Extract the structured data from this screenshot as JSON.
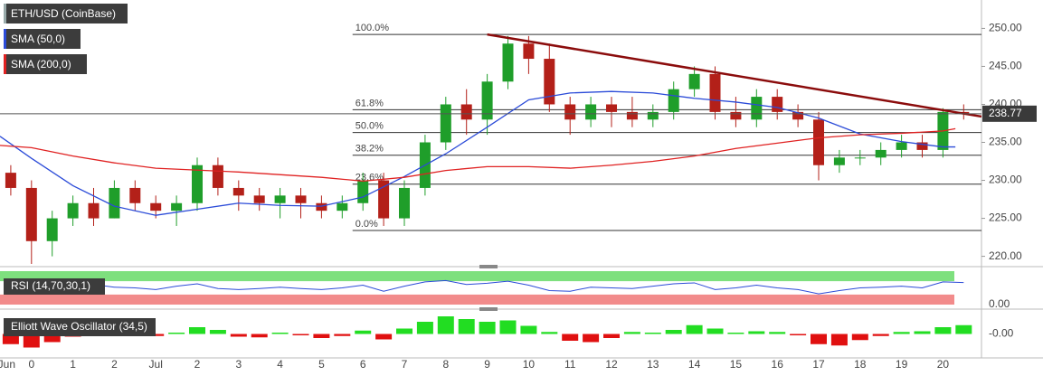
{
  "chart_data": [
    {
      "type": "candlestick",
      "title": "ETH/USD (CoinBase)",
      "x": [
        -0.5,
        0,
        0.5,
        1,
        1.5,
        2,
        2.5,
        3,
        3.5,
        4,
        4.5,
        5,
        5.5,
        6,
        6.5,
        7,
        7.5,
        8,
        8.5,
        9,
        9.5,
        10,
        10.5,
        11,
        11.5,
        12,
        12.5,
        13,
        13.5,
        14,
        14.5,
        15,
        15.5,
        16,
        16.5,
        17,
        17.5,
        18,
        18.5,
        19,
        19.5,
        20,
        20.5,
        21,
        21.5,
        22,
        22.5
      ],
      "open": [
        231,
        229,
        222,
        225,
        227,
        225,
        229,
        227,
        226,
        227,
        232,
        229,
        228,
        227,
        228,
        227,
        226,
        227,
        230,
        225,
        229,
        235,
        240,
        238,
        243,
        248,
        246,
        240,
        238,
        240,
        239,
        238,
        239,
        242,
        244,
        239,
        238,
        241,
        239,
        238,
        232,
        233,
        233,
        234,
        235,
        234,
        239
      ],
      "high": [
        232,
        230,
        226,
        228,
        229,
        230,
        230,
        228,
        228,
        233,
        233,
        230,
        229,
        229,
        229,
        228,
        228,
        231,
        231,
        230,
        236,
        241,
        242,
        244,
        249,
        249,
        248,
        241,
        241,
        241,
        241,
        240,
        243,
        245,
        245,
        241,
        242,
        242,
        240,
        239,
        234,
        234,
        235,
        236,
        236,
        239.5,
        240
      ],
      "low": [
        228,
        219,
        220,
        224,
        224,
        225,
        226,
        225,
        224,
        226,
        228,
        226,
        226,
        225,
        225,
        225,
        225,
        226,
        224,
        224,
        228,
        234,
        236,
        236,
        242,
        244,
        239,
        236,
        237,
        237,
        237,
        237,
        238,
        241,
        238,
        237,
        237,
        238,
        237,
        230,
        231,
        232,
        232,
        233,
        233,
        233,
        238
      ],
      "close": [
        229,
        222,
        225,
        227,
        225,
        229,
        227,
        226,
        227,
        232,
        229,
        228,
        227,
        228,
        227,
        226,
        227,
        230,
        225,
        229,
        235,
        240,
        238,
        243,
        248,
        246,
        240,
        238,
        240,
        239,
        238,
        239,
        242,
        244,
        239,
        238,
        241,
        239,
        238,
        232,
        233,
        233,
        234,
        235,
        234,
        239,
        238.77
      ],
      "up_color": "#1f9e2a",
      "down_color": "#b32019",
      "xlim": [
        -0.76,
        22.93
      ],
      "xticks": [
        {
          "value": -0.6,
          "label": "Jun"
        },
        0,
        1,
        2,
        {
          "value": 3,
          "label": "Jul"
        },
        {
          "value": 4,
          "label": "2"
        },
        {
          "value": 5,
          "label": "3"
        },
        {
          "value": 6,
          "label": "4"
        },
        {
          "value": 7,
          "label": "5"
        },
        {
          "value": 8,
          "label": "6"
        },
        {
          "value": 9,
          "label": "7"
        },
        {
          "value": 10,
          "label": "8"
        },
        {
          "value": 11,
          "label": "9"
        },
        {
          "value": 12,
          "label": "10"
        },
        {
          "value": 13,
          "label": "11"
        },
        {
          "value": 14,
          "label": "12"
        },
        {
          "value": 15,
          "label": "13"
        },
        {
          "value": 16,
          "label": "14"
        },
        {
          "value": 17,
          "label": "15"
        },
        {
          "value": 18,
          "label": "16"
        },
        {
          "value": 19,
          "label": "17"
        },
        {
          "value": 20,
          "label": "18"
        },
        {
          "value": 21,
          "label": "19"
        },
        {
          "value": 22,
          "label": "20"
        }
      ],
      "ylim": [
        219,
        253.5
      ],
      "yticks": [
        {
          "value": 220,
          "label": "220.00"
        },
        {
          "value": 225,
          "label": "225.00"
        },
        {
          "value": 230,
          "label": "230.00"
        },
        {
          "value": 235,
          "label": "235.00"
        },
        {
          "value": 240,
          "label": "240.00"
        },
        {
          "value": 245,
          "label": "245.00"
        },
        {
          "value": 250,
          "label": "250.00"
        }
      ],
      "overlays": [
        {
          "name": "SMA (50,0)",
          "color": "#2b4bd8",
          "x": [
            -0.76,
            0,
            1,
            2,
            3,
            4,
            5,
            6,
            7,
            8,
            9,
            10,
            11,
            12,
            13,
            14,
            15,
            16,
            17,
            18,
            19,
            20,
            21,
            22,
            22.3
          ],
          "values": [
            235.8,
            232.9,
            229.3,
            226.6,
            225.4,
            226.2,
            227,
            226.7,
            226.6,
            227.8,
            230.5,
            233.5,
            237,
            240.6,
            241.5,
            241.7,
            241.5,
            240.8,
            240.3,
            239.6,
            238.2,
            236.1,
            235.1,
            234.4,
            234.4
          ]
        },
        {
          "name": "SMA (200,0)",
          "color": "#e02222",
          "x": [
            -0.76,
            0,
            1,
            2,
            3,
            5,
            7,
            8,
            9,
            10,
            11,
            12,
            13,
            14,
            15,
            16,
            17,
            18,
            19,
            20,
            21,
            22,
            22.3
          ],
          "values": [
            234.6,
            234.3,
            233.2,
            232.3,
            231.6,
            231.1,
            230.4,
            229.9,
            230.4,
            231.3,
            231.8,
            231.8,
            231.6,
            232,
            232.5,
            233.2,
            234.2,
            234.9,
            235.6,
            236,
            236.2,
            236.5,
            236.8
          ]
        }
      ],
      "trendline": {
        "color": "#8b0c0c",
        "x": [
          11,
          22.93
        ],
        "values": [
          249.2,
          238.4
        ]
      },
      "fibonacci": {
        "x_start": 7.75,
        "levels": [
          {
            "label": "100.0%",
            "value": 249.2
          },
          {
            "label": "61.8%",
            "value": 239.3
          },
          {
            "label": "50.0%",
            "value": 236.3
          },
          {
            "label": "38.2%",
            "value": 233.3
          },
          {
            "label": "23.6%",
            "value": 229.5
          },
          {
            "label": "0.0%",
            "value": 223.4
          }
        ]
      },
      "last_price": 238.77
    },
    {
      "type": "line",
      "title": "RSI (14,70,30,1)",
      "color": "#2b4bd8",
      "overbought": 70,
      "oversold": 30,
      "upper_color": "#7ee07e",
      "lower_color": "#f28b8b",
      "x": [
        -0.5,
        0,
        0.5,
        1,
        1.5,
        2,
        2.5,
        3,
        3.5,
        4,
        4.5,
        5,
        5.5,
        6,
        6.5,
        7,
        7.5,
        8,
        8.5,
        9,
        9.5,
        10,
        10.5,
        11,
        11.5,
        12,
        12.5,
        13,
        13.5,
        14,
        14.5,
        15,
        15.5,
        16,
        16.5,
        17,
        17.5,
        18,
        18.5,
        19,
        19.5,
        20,
        20.5,
        21,
        21.5,
        22,
        22.5
      ],
      "values": [
        52,
        40,
        45,
        55,
        60,
        52,
        50,
        45,
        55,
        62,
        48,
        45,
        48,
        52,
        48,
        45,
        50,
        58,
        40,
        55,
        68,
        72,
        60,
        64,
        70,
        58,
        42,
        40,
        52,
        50,
        48,
        55,
        62,
        65,
        45,
        50,
        58,
        50,
        45,
        32,
        42,
        50,
        52,
        55,
        50,
        68,
        66
      ],
      "ylim": [
        0,
        100
      ],
      "yticks": [
        {
          "value": 0,
          "label": "0.00"
        }
      ]
    },
    {
      "type": "bar",
      "title": "Elliott Wave Oscillator (34,5)",
      "up_color": "#22dd22",
      "down_color": "#e01010",
      "x": [
        -0.5,
        0,
        0.5,
        1,
        1.5,
        2,
        2.5,
        3,
        3.5,
        4,
        4.5,
        5,
        5.5,
        6,
        6.5,
        7,
        7.5,
        8,
        8.5,
        9,
        9.5,
        10,
        10.5,
        11,
        11.5,
        12,
        12.5,
        13,
        13.5,
        14,
        14.5,
        15,
        15.5,
        16,
        16.5,
        17,
        17.5,
        18,
        18.5,
        19,
        19.5,
        20,
        20.5,
        21,
        21.5,
        22,
        22.5
      ],
      "values": [
        -1.5,
        -2,
        -1.2,
        -0.4,
        0.4,
        0.6,
        0.3,
        -0.3,
        0.2,
        1,
        0.6,
        -0.4,
        -0.5,
        0.2,
        -0.2,
        -0.6,
        -0.3,
        0.5,
        -0.8,
        0.8,
        1.8,
        2.6,
        2.2,
        1.8,
        2,
        1.2,
        0.3,
        -1,
        -1.2,
        -0.6,
        0.3,
        0.2,
        0.6,
        1.3,
        0.8,
        0.2,
        0.4,
        0.3,
        -0.2,
        -1.5,
        -1.7,
        -0.9,
        -0.3,
        0.3,
        0.4,
        1,
        1.3
      ],
      "ylim": [
        -3,
        3
      ],
      "yticks": [
        {
          "value": 0,
          "label": "-0.00"
        }
      ]
    }
  ]
}
